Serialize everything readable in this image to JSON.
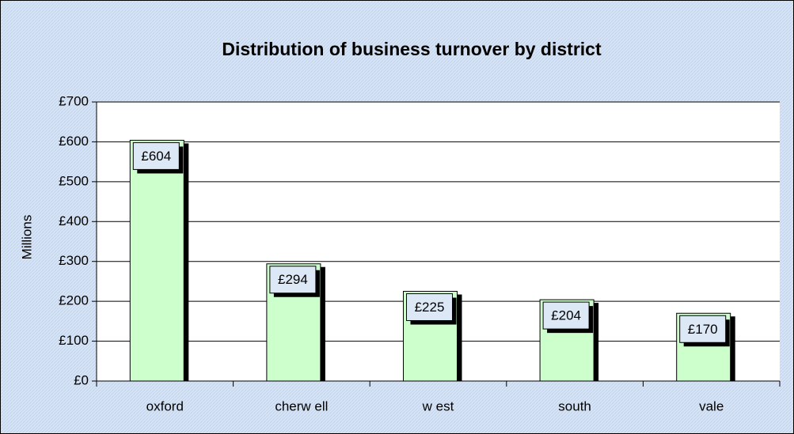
{
  "chart_data": {
    "type": "bar",
    "title": "Distribution of business turnover by district",
    "ylabel": "Millions",
    "categories": [
      "oxford",
      "cherw ell",
      "w est",
      "south",
      "vale"
    ],
    "values": [
      604,
      294,
      225,
      204,
      170
    ],
    "value_labels": [
      "£604",
      "£294",
      "£225",
      "£204",
      "£170"
    ],
    "color": "#ccffcc",
    "ylim": [
      0,
      700
    ],
    "yticks": [
      {
        "value": 0,
        "label": "£0"
      },
      {
        "value": 100,
        "label": "£100"
      },
      {
        "value": 200,
        "label": "£200"
      },
      {
        "value": 300,
        "label": "£300"
      },
      {
        "value": 400,
        "label": "£400"
      },
      {
        "value": 500,
        "label": "£500"
      },
      {
        "value": 600,
        "label": "£600"
      },
      {
        "value": 700,
        "label": "£700"
      }
    ],
    "grid": true
  }
}
